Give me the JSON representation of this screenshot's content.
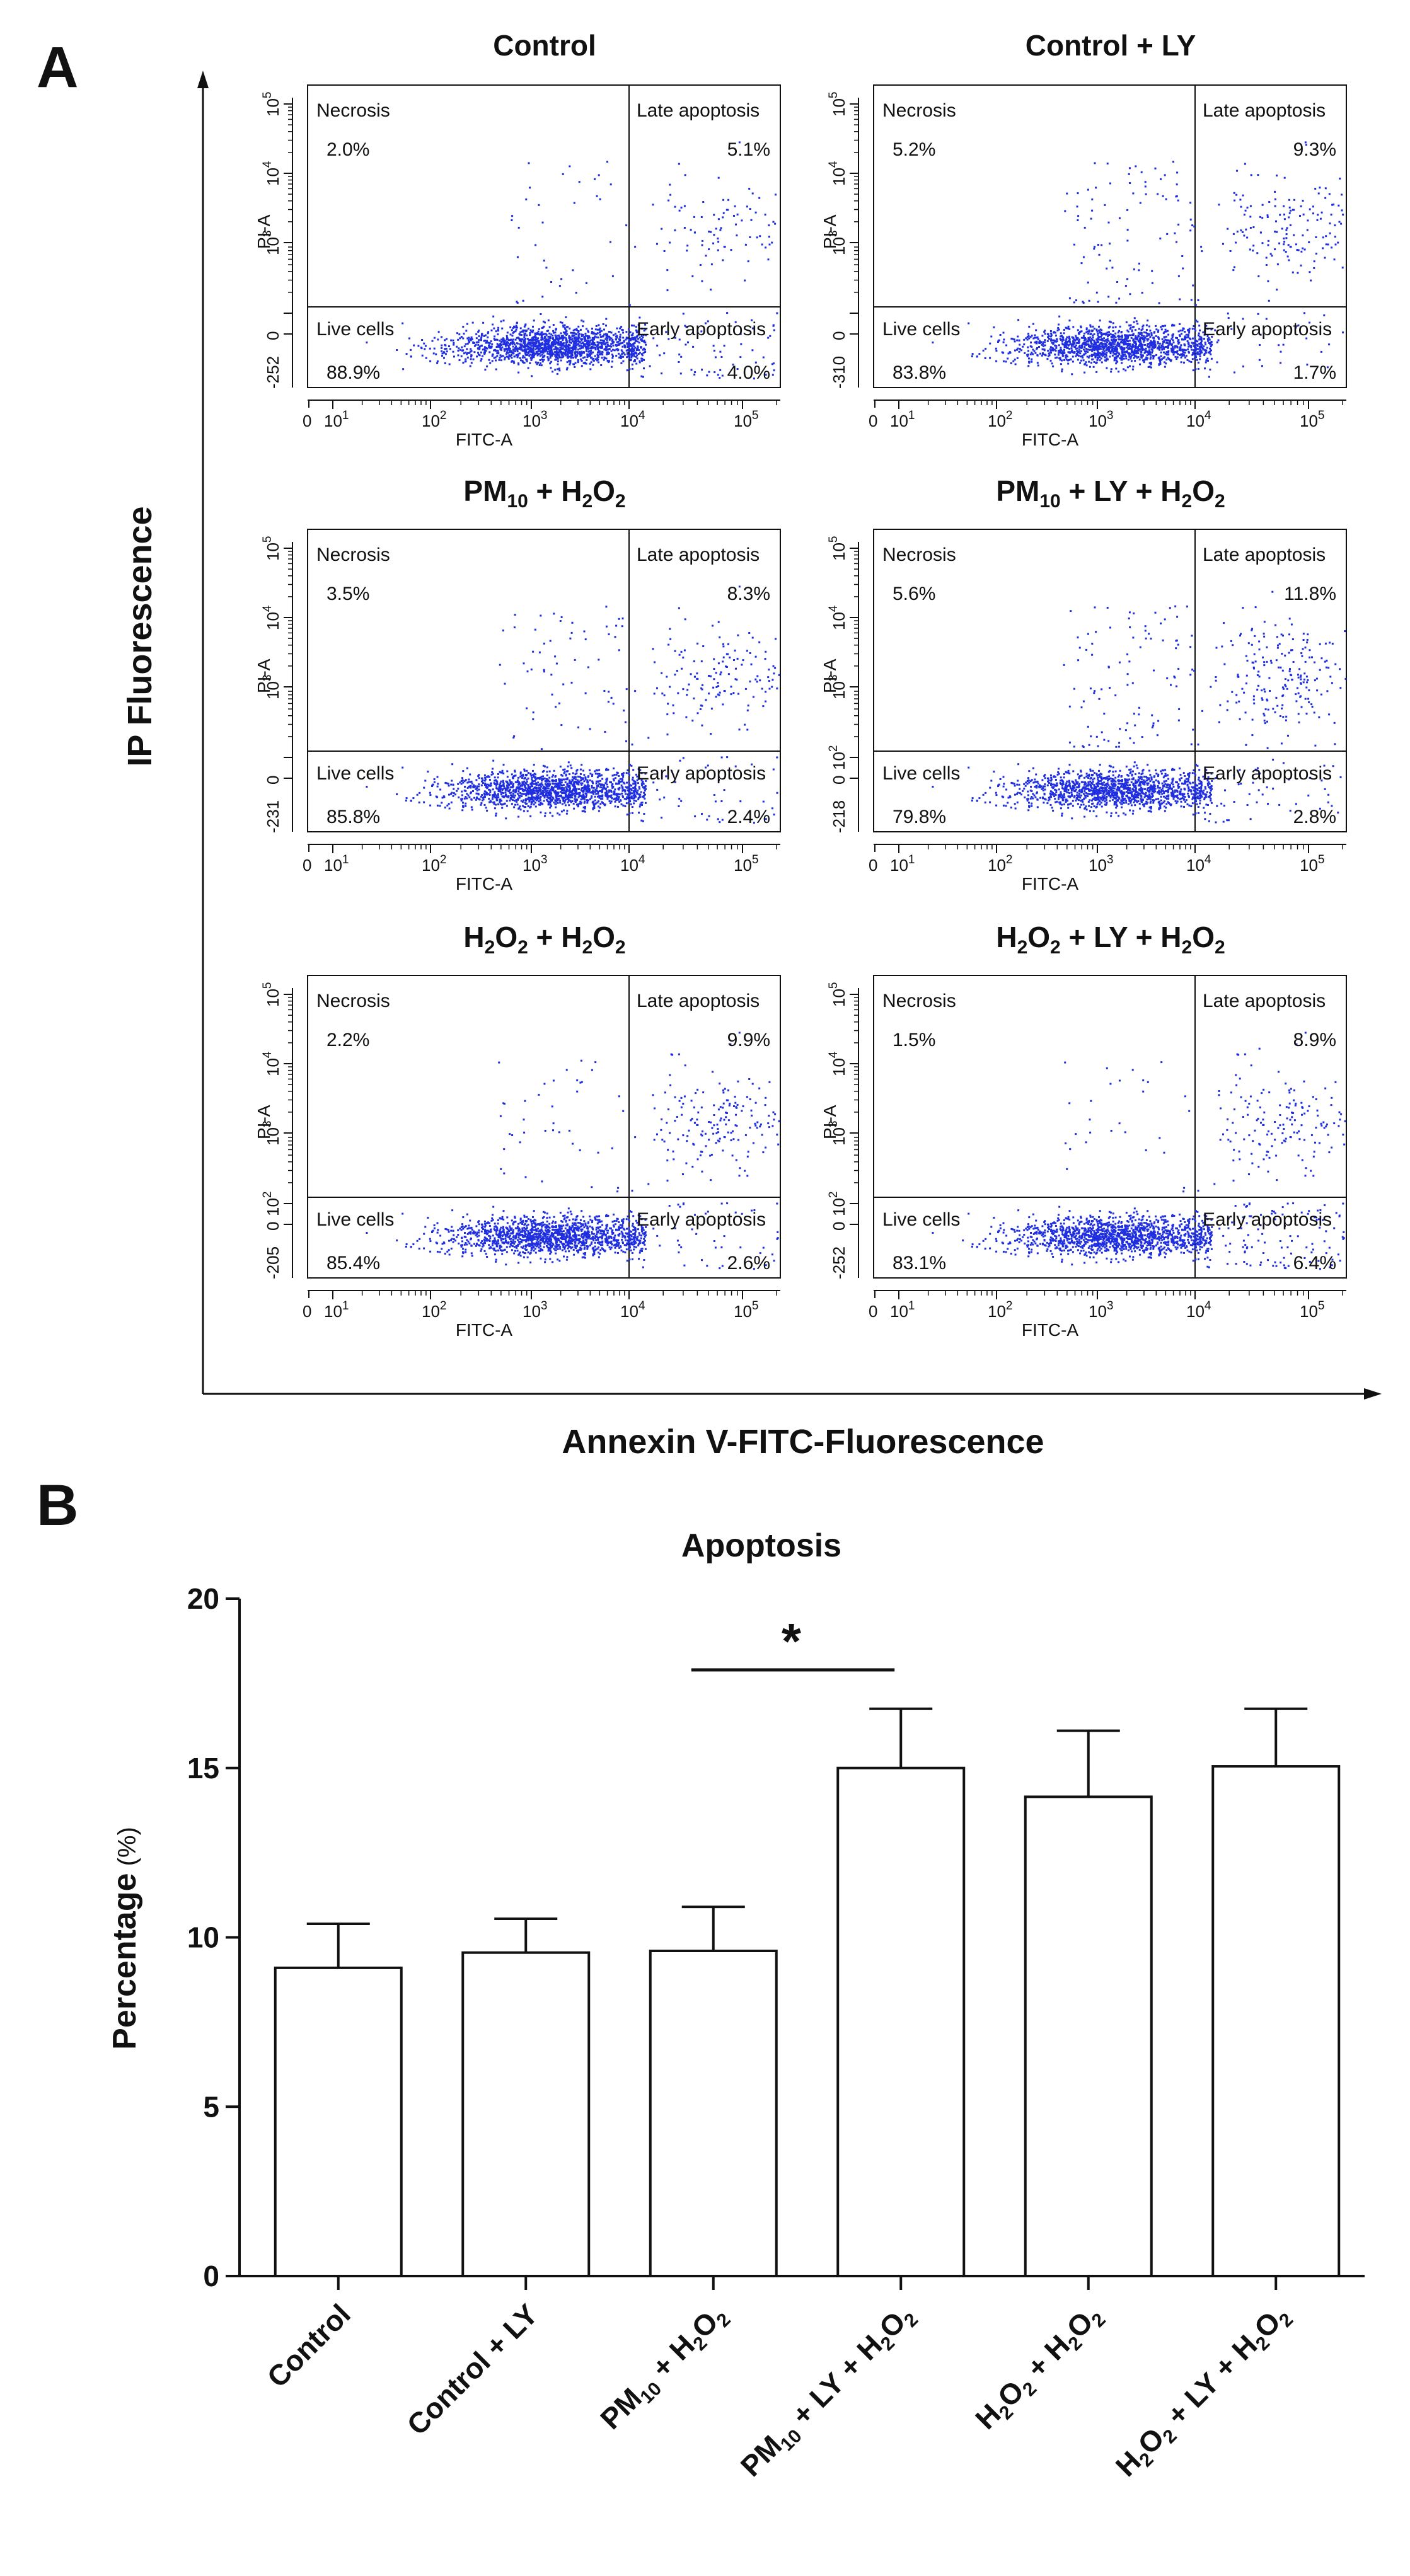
{
  "panel_a": {
    "letter": "A",
    "x_axis_title": "Annexin V-FITC-Fluorescence",
    "y_axis_title": "IP Fluorescence",
    "axis_x_label": "FITC-A",
    "axis_y_label": "PI-A",
    "quadrant_names": {
      "necrosis": "Necrosis",
      "late": "Late apoptosis",
      "live": "Live cells",
      "early": "Early apoptosis"
    },
    "x_ticks": {
      "zero": "0",
      "base": "10",
      "exps": [
        "1",
        "2",
        "3",
        "4",
        "5"
      ]
    },
    "y_tick_base": "10",
    "y_tick_exps": [
      "2",
      "3",
      "4",
      "5"
    ],
    "plots": [
      {
        "title": "Control",
        "title_parts": [
          {
            "t": "Control",
            "sub": false
          }
        ],
        "y_min_label": "-252",
        "show_y102": false,
        "quadrants": {
          "necrosis": "2.0%",
          "late": "5.1%",
          "live": "88.9%",
          "early": "4.0%"
        }
      },
      {
        "title": "Control + LY",
        "title_parts": [
          {
            "t": "Control + LY",
            "sub": false
          }
        ],
        "y_min_label": "-310",
        "show_y102": false,
        "quadrants": {
          "necrosis": "5.2%",
          "late": "9.3%",
          "live": "83.8%",
          "early": "1.7%"
        }
      },
      {
        "title": "PM10 + H2O2",
        "title_parts": [
          {
            "t": "PM",
            "sub": false
          },
          {
            "t": "10",
            "sub": true
          },
          {
            "t": " + H",
            "sub": false
          },
          {
            "t": "2",
            "sub": true
          },
          {
            "t": "O",
            "sub": false
          },
          {
            "t": "2",
            "sub": true
          }
        ],
        "y_min_label": "-231",
        "show_y102": false,
        "quadrants": {
          "necrosis": "3.5%",
          "late": "8.3%",
          "live": "85.8%",
          "early": "2.4%"
        }
      },
      {
        "title": "PM10 + LY + H2O2",
        "title_parts": [
          {
            "t": "PM",
            "sub": false
          },
          {
            "t": "10",
            "sub": true
          },
          {
            "t": " + LY + H",
            "sub": false
          },
          {
            "t": "2",
            "sub": true
          },
          {
            "t": "O",
            "sub": false
          },
          {
            "t": "2",
            "sub": true
          }
        ],
        "y_min_label": "-218",
        "show_y102": true,
        "quadrants": {
          "necrosis": "5.6%",
          "late": "11.8%",
          "live": "79.8%",
          "early": "2.8%"
        }
      },
      {
        "title": "H2O2 + H2O2",
        "title_parts": [
          {
            "t": "H",
            "sub": false
          },
          {
            "t": "2",
            "sub": true
          },
          {
            "t": "O",
            "sub": false
          },
          {
            "t": "2",
            "sub": true
          },
          {
            "t": " + H",
            "sub": false
          },
          {
            "t": "2",
            "sub": true
          },
          {
            "t": "O",
            "sub": false
          },
          {
            "t": "2",
            "sub": true
          }
        ],
        "y_min_label": "-205",
        "show_y102": true,
        "quadrants": {
          "necrosis": "2.2%",
          "late": "9.9%",
          "live": "85.4%",
          "early": "2.6%"
        }
      },
      {
        "title": "H2O2 + LY + H2O2",
        "title_parts": [
          {
            "t": "H",
            "sub": false
          },
          {
            "t": "2",
            "sub": true
          },
          {
            "t": "O",
            "sub": false
          },
          {
            "t": "2",
            "sub": true
          },
          {
            "t": " + LY + H",
            "sub": false
          },
          {
            "t": "2",
            "sub": true
          },
          {
            "t": "O",
            "sub": false
          },
          {
            "t": "2",
            "sub": true
          }
        ],
        "y_min_label": "-252",
        "show_y102": true,
        "quadrants": {
          "necrosis": "1.5%",
          "late": "8.9%",
          "live": "83.1%",
          "early": "6.4%"
        }
      }
    ]
  },
  "panel_b": {
    "letter": "B",
    "significance_label": "*"
  },
  "colors": {
    "dots": "#1f2fe0",
    "ink": "#111111",
    "bar_fill": "#ffffff"
  },
  "chart_data": {
    "type": "bar",
    "title": "Apoptosis",
    "xlabel": "",
    "ylabel": "Percentage",
    "ylabel_unit": "(%)",
    "ylim": [
      0,
      20
    ],
    "yticks": [
      0,
      5,
      10,
      15,
      20
    ],
    "categories": [
      "Control",
      "Control + LY",
      "PM10 + H2O2",
      "PM10 + LY + H2O2",
      "H2O2 + H2O2",
      "H2O2 + LY + H2O2"
    ],
    "category_parts": [
      [
        {
          "t": "Control",
          "sub": false
        }
      ],
      [
        {
          "t": "Control  + LY",
          "sub": false
        }
      ],
      [
        {
          "t": "PM",
          "sub": false
        },
        {
          "t": "10",
          "sub": true
        },
        {
          "t": " + H",
          "sub": false
        },
        {
          "t": "2",
          "sub": true
        },
        {
          "t": "O",
          "sub": false
        },
        {
          "t": "2",
          "sub": true
        }
      ],
      [
        {
          "t": "PM",
          "sub": false
        },
        {
          "t": "10",
          "sub": true
        },
        {
          "t": " + LY + H",
          "sub": false
        },
        {
          "t": "2",
          "sub": true
        },
        {
          "t": "O",
          "sub": false
        },
        {
          "t": "2",
          "sub": true
        }
      ],
      [
        {
          "t": "H",
          "sub": false
        },
        {
          "t": "2",
          "sub": true
        },
        {
          "t": "O",
          "sub": false
        },
        {
          "t": "2",
          "sub": true
        },
        {
          "t": " + H",
          "sub": false
        },
        {
          "t": "2",
          "sub": true
        },
        {
          "t": "O",
          "sub": false
        },
        {
          "t": "2",
          "sub": true
        }
      ],
      [
        {
          "t": "H",
          "sub": false
        },
        {
          "t": "2",
          "sub": true
        },
        {
          "t": "O",
          "sub": false
        },
        {
          "t": "2",
          "sub": true
        },
        {
          "t": " + LY + H",
          "sub": false
        },
        {
          "t": "2",
          "sub": true
        },
        {
          "t": "O",
          "sub": false
        },
        {
          "t": "2",
          "sub": true
        }
      ]
    ],
    "values": [
      9.1,
      9.55,
      9.6,
      15.0,
      14.15,
      15.05
    ],
    "errors": [
      1.3,
      1.0,
      1.3,
      1.75,
      1.95,
      1.7
    ],
    "significance": {
      "between": [
        2,
        3
      ],
      "label": "*"
    }
  }
}
